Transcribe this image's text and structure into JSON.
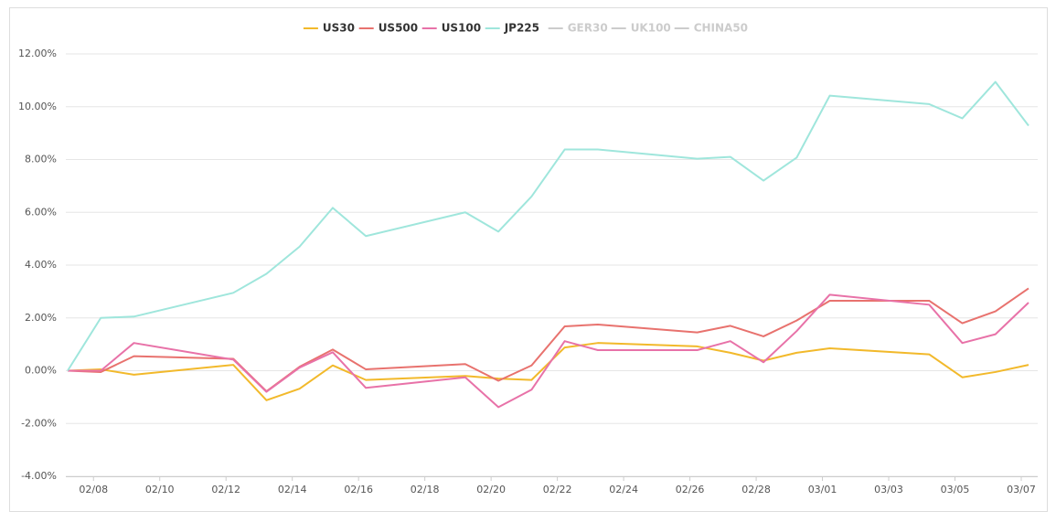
{
  "chart_data": {
    "type": "line",
    "x": [
      "02/07",
      "02/08",
      "02/09",
      "02/12",
      "02/13",
      "02/14",
      "02/15",
      "02/16",
      "02/19",
      "02/20",
      "02/21",
      "02/22",
      "02/23",
      "02/26",
      "02/27",
      "02/28",
      "02/29",
      "03/01",
      "03/04",
      "03/05",
      "03/06",
      "03/07"
    ],
    "series": [
      {
        "name": "US30",
        "color": "#f2b92b",
        "values": [
          0,
          0.05,
          -0.15,
          0.22,
          -1.12,
          -0.68,
          0.2,
          -0.35,
          -0.2,
          -0.3,
          -0.35,
          0.88,
          1.05,
          0.92,
          0.68,
          0.38,
          0.68,
          0.85,
          0.62,
          -0.25,
          -0.05,
          0.22
        ]
      },
      {
        "name": "US500",
        "color": "#e8726e",
        "values": [
          0,
          -0.05,
          0.55,
          0.45,
          -0.78,
          0.15,
          0.8,
          0.05,
          0.25,
          -0.38,
          0.2,
          1.68,
          1.75,
          1.45,
          1.7,
          1.3,
          1.9,
          2.65,
          2.65,
          1.8,
          2.25,
          3.12
        ]
      },
      {
        "name": "US100",
        "color": "#e872a8",
        "values": [
          0,
          0,
          1.05,
          0.42,
          -0.8,
          0.12,
          0.7,
          -0.65,
          -0.25,
          -1.38,
          -0.72,
          1.12,
          0.78,
          0.78,
          1.12,
          0.32,
          1.5,
          2.88,
          2.5,
          1.05,
          1.38,
          2.58
        ]
      },
      {
        "name": "JP225",
        "color": "#9fe6dc",
        "values": [
          0,
          2.0,
          2.05,
          2.95,
          3.67,
          4.7,
          6.17,
          5.1,
          6.0,
          5.27,
          6.6,
          8.38,
          8.38,
          8.03,
          8.1,
          7.2,
          8.07,
          10.42,
          10.1,
          9.56,
          10.94,
          9.28
        ]
      }
    ],
    "inactive_series": [
      {
        "name": "GER30",
        "color": "#cccccc"
      },
      {
        "name": "UK100",
        "color": "#cccccc"
      },
      {
        "name": "CHINA50",
        "color": "#cccccc"
      }
    ],
    "xticks": [
      "02/08",
      "02/10",
      "02/12",
      "02/14",
      "02/16",
      "02/18",
      "02/20",
      "02/22",
      "02/24",
      "02/26",
      "02/28",
      "03/01",
      "03/03",
      "03/05",
      "03/07"
    ],
    "ylim": [
      -4,
      12
    ],
    "yticks": [
      {
        "value": -4,
        "label": "-4.00%"
      },
      {
        "value": -2,
        "label": "-2.00%"
      },
      {
        "value": 0,
        "label": "0.00%"
      },
      {
        "value": 2,
        "label": "2.00%"
      },
      {
        "value": 4,
        "label": "4.00%"
      },
      {
        "value": 6,
        "label": "6.00%"
      },
      {
        "value": 8,
        "label": "8.00%"
      },
      {
        "value": 10,
        "label": "10.00%"
      },
      {
        "value": 12,
        "label": "12.00%"
      }
    ],
    "grid": true,
    "legend": "top"
  }
}
